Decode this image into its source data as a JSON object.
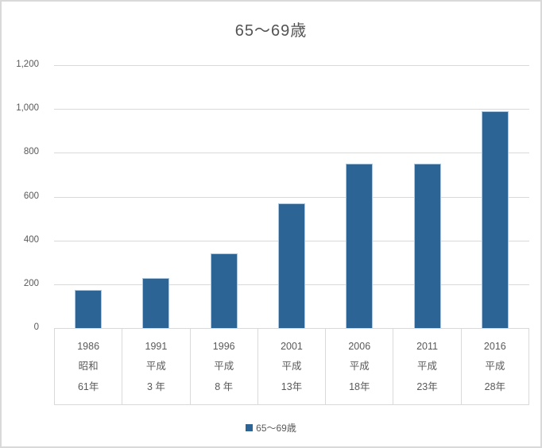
{
  "chart_data": {
    "type": "bar",
    "title": "65〜69歳",
    "x_categories": [
      {
        "year": "1986",
        "era": "昭和",
        "era_year": "61年"
      },
      {
        "year": "1991",
        "era": "平成",
        "era_year": "3 年"
      },
      {
        "year": "1996",
        "era": "平成",
        "era_year": "8 年"
      },
      {
        "year": "2001",
        "era": "平成",
        "era_year": "13年"
      },
      {
        "year": "2006",
        "era": "平成",
        "era_year": "18年"
      },
      {
        "year": "2011",
        "era": "平成",
        "era_year": "23年"
      },
      {
        "year": "2016",
        "era": "平成",
        "era_year": "28年"
      }
    ],
    "series": [
      {
        "name": "65〜69歳",
        "values": [
          175,
          230,
          340,
          570,
          750,
          750,
          990
        ]
      }
    ],
    "ylim": [
      0,
      1200
    ],
    "yticks": [
      0,
      200,
      400,
      600,
      800,
      1000,
      1200
    ],
    "ytick_labels": [
      "0",
      "200",
      "400",
      "600",
      "800",
      "1,000",
      "1,200"
    ],
    "grid": true,
    "legend_position": "bottom"
  },
  "legend": {
    "marker_icon": "square-icon",
    "label": "65〜69歳"
  },
  "colors": {
    "bar_fill": "#2c6496",
    "bar_edge": "#a9c8e4",
    "gridline": "#d9d9d9",
    "axis_text": "#595959",
    "title_text": "#535353",
    "chart_border": "#d9d9d9",
    "background": "#ffffff"
  }
}
